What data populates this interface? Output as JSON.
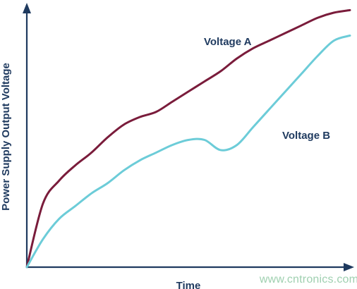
{
  "chart_data": {
    "type": "line",
    "title": "",
    "xlabel": "Time",
    "ylabel": "Power Supply Output Voltage",
    "xlim": [
      0,
      100
    ],
    "ylim": [
      0,
      100
    ],
    "grid": false,
    "series": [
      {
        "name": "Voltage A",
        "color": "#7a1c3b",
        "x": [
          0,
          5,
          10,
          15,
          20,
          25,
          30,
          35,
          40,
          45,
          50,
          55,
          60,
          65,
          70,
          75,
          80,
          85,
          90,
          95,
          100
        ],
        "y": [
          0,
          25,
          34,
          40,
          45,
          51,
          56,
          59,
          61,
          65,
          69,
          73,
          77,
          82,
          86,
          89,
          92,
          95,
          98,
          100,
          101
        ]
      },
      {
        "name": "Voltage B",
        "color": "#6cccd8",
        "x": [
          0,
          5,
          10,
          15,
          20,
          25,
          30,
          35,
          40,
          45,
          50,
          55,
          60,
          65,
          70,
          75,
          80,
          85,
          90,
          95,
          100
        ],
        "y": [
          0,
          11,
          19,
          24,
          29,
          33,
          38,
          42,
          45,
          48,
          50,
          50,
          46,
          48,
          55,
          62,
          69,
          76,
          83,
          89,
          91
        ]
      }
    ]
  },
  "watermark": "www.cntronics.com"
}
